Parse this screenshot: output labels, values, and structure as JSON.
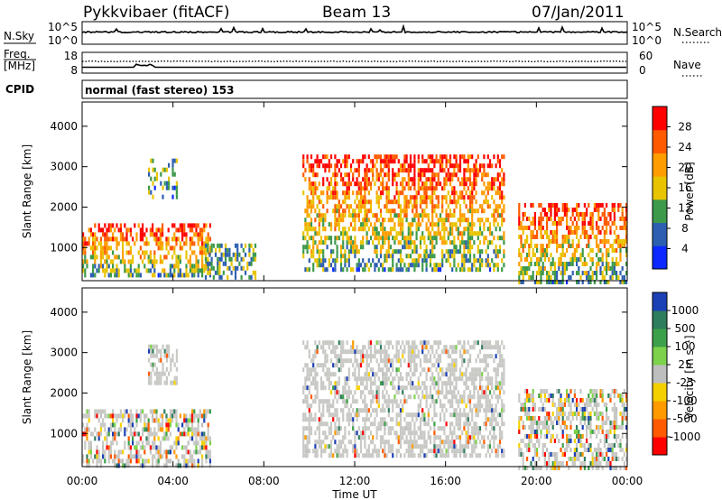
{
  "header": {
    "station": "Pykkvibaer (fitACF)",
    "beam": "Beam 13",
    "date": "07/Jan/2011"
  },
  "top_panels": {
    "nsky_label": "N.Sky",
    "nsky_ticks": [
      "10^5",
      "10^0"
    ],
    "nsearch_label": "N.Search",
    "nsearch_ticks": [
      "10^5",
      "10^0"
    ],
    "freq_label": "Freq.",
    "freq_unit": "[MHz]",
    "freq_ticks": [
      "18",
      "8"
    ],
    "nave_label": "Nave",
    "nave_ticks": [
      "60",
      "0"
    ],
    "cpid_label": "CPID",
    "cpid_text": "normal (fast stereo) 153"
  },
  "chart_data": [
    {
      "type": "heatmap",
      "name": "power-panel",
      "ylabel": "Slant Range [km]",
      "yticks": [
        1000,
        2000,
        3000,
        4000
      ],
      "ylim": [
        180,
        4600
      ],
      "xlim": [
        0,
        24
      ],
      "colorbar": {
        "label": "Power [dB]",
        "ticks": [
          "28",
          "24",
          "20",
          "16",
          "12",
          "8",
          "4"
        ],
        "colors": [
          "#ff0000",
          "#ff5a00",
          "#ff9d00",
          "#e8c400",
          "#3c9a4a",
          "#2d5fb0",
          "#0a28ff"
        ]
      },
      "regions": [
        {
          "x": [
            0.0,
            5.6
          ],
          "y": [
            300,
            1600
          ],
          "level": "high"
        },
        {
          "x": [
            2.9,
            4.2
          ],
          "y": [
            2300,
            3200
          ],
          "level": "low"
        },
        {
          "x": [
            5.4,
            7.6
          ],
          "y": [
            300,
            1100
          ],
          "level": "mid"
        },
        {
          "x": [
            9.7,
            18.6
          ],
          "y": [
            400,
            3300
          ],
          "level": "high"
        },
        {
          "x": [
            19.2,
            24.0
          ],
          "y": [
            200,
            2100
          ],
          "level": "high"
        }
      ]
    },
    {
      "type": "heatmap",
      "name": "velocity-panel",
      "ylabel": "Slant Range [km]",
      "yticks": [
        1000,
        2000,
        3000,
        4000
      ],
      "ylim": [
        180,
        4600
      ],
      "xlabel": "Time UT",
      "xticks": [
        "00:00",
        "04:00",
        "08:00",
        "12:00",
        "16:00",
        "20:00",
        "00:00"
      ],
      "xlim": [
        0,
        24
      ],
      "colorbar": {
        "label": "Velocity [m s⁻¹]",
        "ticks": [
          "1000",
          "500",
          "100",
          "25",
          "-25",
          "-100",
          "-500",
          "-1000"
        ],
        "colors": [
          "#1b3fb5",
          "#2e7d5e",
          "#3ca04a",
          "#7cd24b",
          "#bebebe",
          "#f5d000",
          "#ff9a00",
          "#ff5a00",
          "#ff0000"
        ]
      },
      "regions": [
        {
          "x": [
            0.0,
            5.6
          ],
          "y": [
            200,
            1600
          ],
          "level": "mixed"
        },
        {
          "x": [
            2.9,
            4.2
          ],
          "y": [
            2300,
            3200
          ],
          "level": "ground"
        },
        {
          "x": [
            9.7,
            18.6
          ],
          "y": [
            400,
            3300
          ],
          "level": "ground"
        },
        {
          "x": [
            19.2,
            24.0
          ],
          "y": [
            200,
            2100
          ],
          "level": "mixed"
        }
      ]
    }
  ]
}
